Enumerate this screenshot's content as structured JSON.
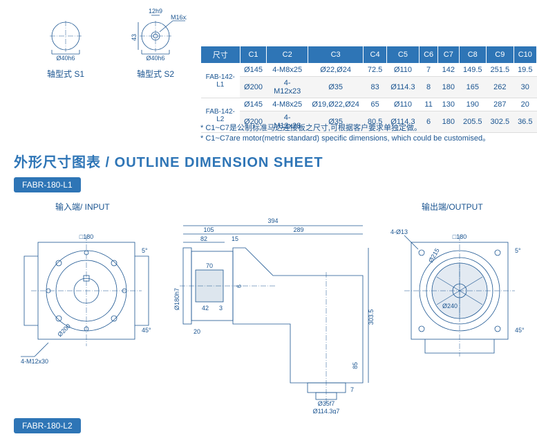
{
  "shaft_diagrams": {
    "s1": {
      "label": "轴型式 S1",
      "diameter": "Ø40h6"
    },
    "s2": {
      "label": "轴型式 S2",
      "diameter": "Ø40h6",
      "width": "12h9",
      "height": "43",
      "thread": "M16x2P"
    }
  },
  "spec_table": {
    "headers": [
      "尺寸",
      "C1",
      "C2",
      "C3",
      "C4",
      "C5",
      "C6",
      "C7",
      "C8",
      "C9",
      "C10"
    ],
    "rows": [
      {
        "model": "FAB-142-L1",
        "cells": [
          [
            "Ø145",
            "4-M8x25",
            "Ø22,Ø24",
            "72.5",
            "Ø110",
            "7",
            "142",
            "149.5",
            "251.5",
            "19.5"
          ],
          [
            "Ø200",
            "4-M12x23",
            "Ø35",
            "83",
            "Ø114.3",
            "8",
            "180",
            "165",
            "262",
            "30"
          ]
        ]
      },
      {
        "model": "FAB-142-L2",
        "cells": [
          [
            "Ø145",
            "4-M8x25",
            "Ø19,Ø22,Ø24",
            "65",
            "Ø110",
            "11",
            "130",
            "190",
            "287",
            "20"
          ],
          [
            "Ø200",
            "4-M12x28",
            "Ø35",
            "80.5",
            "Ø114.3",
            "6",
            "180",
            "205.5",
            "302.5",
            "36.5"
          ]
        ]
      }
    ]
  },
  "notes": {
    "line1": "* C1~C7是公制标准马达连接板之尺寸,可根据客户要求单独定做。",
    "line2": "* C1~C7are motor(metric standard)  specific dimensions, which could be customised。"
  },
  "heading": {
    "cn": "外形尺寸图表",
    "sep": " / ",
    "en": "OUTLINE DIMENSION SHEET"
  },
  "tags": {
    "t1": "FABR-180-L1",
    "t2": "FABR-180-L2"
  },
  "views": {
    "input": {
      "label": "输入端/ INPUT",
      "dims": {
        "sq": "□180",
        "holes": "4-M12x30",
        "flange": "Ø200",
        "ang1": "5°",
        "ang2": "45°"
      }
    },
    "side": {
      "dims": {
        "total": "394",
        "a": "105",
        "b": "289",
        "c": "82",
        "d": "15",
        "e": "70",
        "f": "42",
        "g": "3",
        "h": "20",
        "v1": "Ø180h7",
        "v2": "6",
        "v3": "303.5",
        "v4": "85",
        "v5": "7",
        "bf": "Ø35f7",
        "bp": "Ø114.3g7"
      }
    },
    "output": {
      "label": "输出端/OUTPUT",
      "dims": {
        "sq": "□180",
        "holes": "4-Ø13",
        "d1": "Ø215",
        "d2": "Ø240",
        "ang1": "5°",
        "ang2": "45°"
      }
    }
  }
}
